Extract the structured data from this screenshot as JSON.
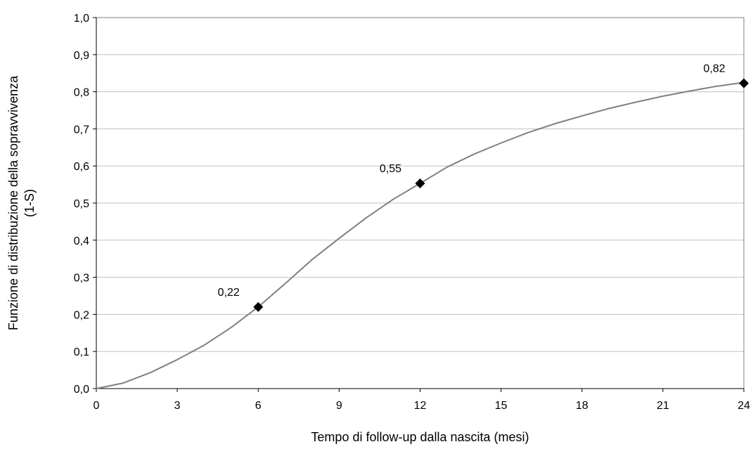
{
  "chart_data": {
    "type": "line",
    "title": "",
    "xlabel": "Tempo di follow-up dalla nascita (mesi)",
    "ylabel_lines": [
      "Funzione di distribuzione della sopravvivenza",
      "(1-S)"
    ],
    "xlim": [
      0,
      24
    ],
    "ylim": [
      0,
      1
    ],
    "x_ticks": [
      0,
      3,
      6,
      9,
      12,
      15,
      18,
      21,
      24
    ],
    "x_tick_labels": [
      "0",
      "3",
      "6",
      "9",
      "12",
      "15",
      "18",
      "21",
      "24"
    ],
    "y_ticks": [
      0,
      0.1,
      0.2,
      0.3,
      0.4,
      0.5,
      0.6,
      0.7,
      0.8,
      0.9,
      1.0
    ],
    "y_tick_labels": [
      "0,0",
      "0,1",
      "0,2",
      "0,3",
      "0,4",
      "0,5",
      "0,6",
      "0,7",
      "0,8",
      "0,9",
      "1,0"
    ],
    "grid": "horizontal",
    "legend": "none",
    "series": [
      {
        "color": "#808080",
        "x": [
          0,
          1,
          2,
          3,
          4,
          5,
          6,
          7,
          8,
          9,
          10,
          11,
          12,
          13,
          14,
          15,
          16,
          17,
          18,
          19,
          20,
          21,
          22,
          23,
          24
        ],
        "y": [
          0.0,
          0.015,
          0.043,
          0.078,
          0.117,
          0.165,
          0.22,
          0.283,
          0.348,
          0.405,
          0.46,
          0.51,
          0.553,
          0.597,
          0.632,
          0.662,
          0.69,
          0.714,
          0.735,
          0.755,
          0.772,
          0.788,
          0.802,
          0.815,
          0.825
        ]
      }
    ],
    "markers": [
      {
        "x": 6,
        "y": 0.22,
        "label": "0,22"
      },
      {
        "x": 12,
        "y": 0.553,
        "label": "0,55"
      },
      {
        "x": 24,
        "y": 0.823,
        "label": "0,82"
      }
    ],
    "colors": {
      "line": "#808080",
      "marker": "#000000",
      "gridline": "#c0c0c0",
      "plot_border": "#808080"
    }
  }
}
